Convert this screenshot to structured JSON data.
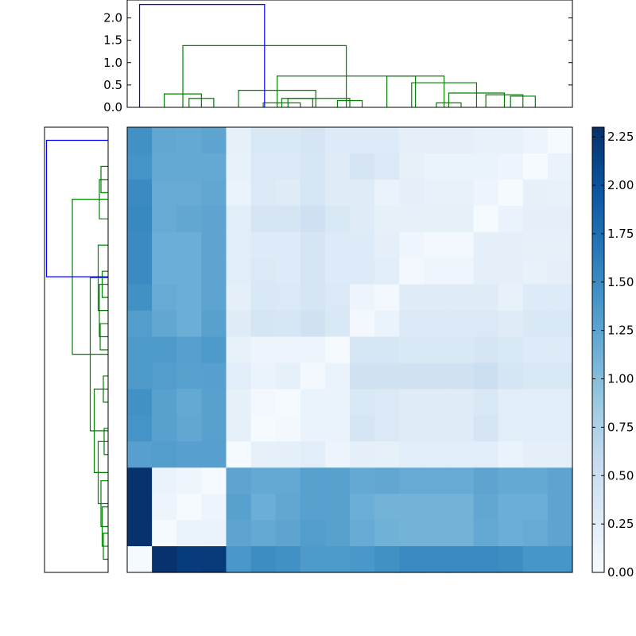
{
  "chart_data": {
    "type": "heatmap",
    "title": "",
    "xlabel": "",
    "ylabel": "",
    "grid": false,
    "colormap": "Blues",
    "colormap_stops": [
      "#f7fbff",
      "#deebf7",
      "#c6dbef",
      "#9ecae1",
      "#6baed6",
      "#4292c6",
      "#2171b5",
      "#08519c",
      "#08306b"
    ],
    "vmin": 0,
    "vmax": 2.3,
    "colorbar": {
      "placement": "right",
      "ticks": [
        0.0,
        0.25,
        0.5,
        0.75,
        1.0,
        1.25,
        1.5,
        1.75,
        2.0,
        2.25
      ],
      "tick_labels": [
        "0.00",
        "0.25",
        "0.50",
        "0.75",
        "1.00",
        "1.25",
        "1.50",
        "1.75",
        "2.00",
        "2.25"
      ]
    },
    "matrix_rows_top_to_bottom": [
      [
        1.45,
        1.22,
        1.2,
        1.25,
        0.2,
        0.35,
        0.35,
        0.4,
        0.3,
        0.3,
        0.3,
        0.22,
        0.22,
        0.22,
        0.18,
        0.18,
        0.12,
        0.02
      ],
      [
        1.42,
        1.2,
        1.2,
        1.2,
        0.18,
        0.32,
        0.32,
        0.38,
        0.28,
        0.4,
        0.32,
        0.2,
        0.15,
        0.15,
        0.15,
        0.12,
        0.02,
        0.15
      ],
      [
        1.5,
        1.18,
        1.18,
        1.22,
        0.15,
        0.32,
        0.28,
        0.38,
        0.28,
        0.28,
        0.15,
        0.22,
        0.18,
        0.18,
        0.12,
        0.02,
        0.2,
        0.18
      ],
      [
        1.52,
        1.18,
        1.22,
        1.25,
        0.25,
        0.4,
        0.4,
        0.48,
        0.35,
        0.28,
        0.2,
        0.2,
        0.2,
        0.2,
        0.02,
        0.15,
        0.22,
        0.22
      ],
      [
        1.5,
        1.15,
        1.15,
        1.25,
        0.25,
        0.3,
        0.3,
        0.4,
        0.3,
        0.3,
        0.22,
        0.1,
        0.05,
        0.05,
        0.22,
        0.22,
        0.2,
        0.2
      ],
      [
        1.5,
        1.15,
        1.15,
        1.25,
        0.25,
        0.32,
        0.3,
        0.4,
        0.3,
        0.3,
        0.25,
        0.05,
        0.1,
        0.1,
        0.22,
        0.22,
        0.18,
        0.22
      ],
      [
        1.45,
        1.18,
        1.15,
        1.25,
        0.22,
        0.35,
        0.32,
        0.4,
        0.32,
        0.12,
        0.05,
        0.28,
        0.28,
        0.28,
        0.28,
        0.18,
        0.3,
        0.3
      ],
      [
        1.32,
        1.22,
        1.15,
        1.28,
        0.28,
        0.4,
        0.38,
        0.45,
        0.35,
        0.05,
        0.15,
        0.32,
        0.32,
        0.32,
        0.32,
        0.28,
        0.35,
        0.35
      ],
      [
        1.35,
        1.35,
        1.3,
        1.35,
        0.18,
        0.12,
        0.12,
        0.12,
        0.02,
        0.38,
        0.38,
        0.35,
        0.35,
        0.35,
        0.4,
        0.35,
        0.3,
        0.3
      ],
      [
        1.35,
        1.32,
        1.28,
        1.3,
        0.25,
        0.15,
        0.2,
        0.05,
        0.15,
        0.45,
        0.45,
        0.45,
        0.45,
        0.45,
        0.5,
        0.4,
        0.35,
        0.35
      ],
      [
        1.45,
        1.28,
        1.2,
        1.28,
        0.2,
        0.05,
        0.02,
        0.15,
        0.15,
        0.35,
        0.32,
        0.28,
        0.28,
        0.28,
        0.35,
        0.25,
        0.25,
        0.25
      ],
      [
        1.42,
        1.28,
        1.22,
        1.28,
        0.2,
        0.02,
        0.05,
        0.15,
        0.15,
        0.4,
        0.32,
        0.28,
        0.28,
        0.28,
        0.4,
        0.25,
        0.25,
        0.25
      ],
      [
        1.3,
        1.32,
        1.3,
        1.3,
        0.02,
        0.2,
        0.22,
        0.25,
        0.12,
        0.22,
        0.2,
        0.25,
        0.25,
        0.25,
        0.25,
        0.15,
        0.22,
        0.22
      ],
      [
        2.28,
        0.15,
        0.1,
        0.02,
        1.25,
        1.2,
        1.2,
        1.28,
        1.28,
        1.2,
        1.22,
        1.18,
        1.18,
        1.18,
        1.25,
        1.2,
        1.2,
        1.25
      ],
      [
        2.28,
        0.12,
        0.02,
        0.12,
        1.28,
        1.15,
        1.22,
        1.28,
        1.28,
        1.15,
        1.1,
        1.1,
        1.1,
        1.1,
        1.22,
        1.15,
        1.15,
        1.25
      ],
      [
        2.28,
        0.02,
        0.15,
        0.15,
        1.25,
        1.2,
        1.25,
        1.32,
        1.28,
        1.18,
        1.12,
        1.1,
        1.1,
        1.1,
        1.2,
        1.15,
        1.18,
        1.25
      ],
      [
        0.02,
        2.28,
        2.2,
        2.22,
        1.38,
        1.48,
        1.45,
        1.35,
        1.35,
        1.38,
        1.45,
        1.5,
        1.5,
        1.5,
        1.5,
        1.48,
        1.4,
        1.4
      ]
    ],
    "dendrograms": [
      {
        "name": "top",
        "orientation": "top",
        "leaf_count": 18,
        "axis": {
          "range": [
            0,
            2.4
          ],
          "ticks": [
            0.0,
            0.5,
            1.0,
            1.5,
            2.0
          ],
          "tick_labels": [
            "0.0",
            "0.5",
            "1.0",
            "1.5",
            "2.0"
          ]
        },
        "links": [
          {
            "pos": [
              2.5,
              3.5
            ],
            "height": 0.2,
            "color": "#008000"
          },
          {
            "pos": [
              1.5,
              3.0
            ],
            "height": 0.3,
            "color": "#008000"
          },
          {
            "pos": [
              6.5,
              7.5
            ],
            "height": 0.2,
            "color": "#008000"
          },
          {
            "pos": [
              5.5,
              7.0
            ],
            "height": 0.1,
            "color": "#008000"
          },
          {
            "pos": [
              8.5,
              9.5
            ],
            "height": 0.15,
            "color": "#008000"
          },
          {
            "pos": [
              6.25,
              9.0
            ],
            "height": 0.2,
            "color": "#008000"
          },
          {
            "pos": [
              4.5,
              7.625
            ],
            "height": 0.38,
            "color": "#008000"
          },
          {
            "pos": [
              12.5,
              13.5
            ],
            "height": 0.1,
            "color": "#008000"
          },
          {
            "pos": [
              15.5,
              16.5
            ],
            "height": 0.25,
            "color": "#008000"
          },
          {
            "pos": [
              14.5,
              16.0
            ],
            "height": 0.28,
            "color": "#008000"
          },
          {
            "pos": [
              13.0,
              15.25
            ],
            "height": 0.32,
            "color": "#008000"
          },
          {
            "pos": [
              11.5,
              14.125
            ],
            "height": 0.55,
            "color": "#008000"
          },
          {
            "pos": [
              10.5,
              12.8125
            ],
            "height": 0.7,
            "color": "#008000"
          },
          {
            "pos": [
              6.0625,
              11.65625
            ],
            "height": 0.7,
            "color": "#008000"
          },
          {
            "pos": [
              2.25,
              8.859375
            ],
            "height": 1.38,
            "color": "#008000"
          },
          {
            "pos": [
              0.5,
              5.5546875
            ],
            "height": 2.3,
            "color": "#0000ff"
          }
        ]
      },
      {
        "name": "left",
        "orientation": "left",
        "leaf_count": 17,
        "links": [
          {
            "pos": [
              0.5,
              1.5
            ],
            "height": 0.12,
            "color": "#008000"
          },
          {
            "pos": [
              1.0,
              2.5
            ],
            "height": 0.15,
            "color": "#008000"
          },
          {
            "pos": [
              1.75,
              3.5
            ],
            "height": 0.18,
            "color": "#008000"
          },
          {
            "pos": [
              4.5,
              5.5
            ],
            "height": 0.1,
            "color": "#008000"
          },
          {
            "pos": [
              2.625,
              5.0
            ],
            "height": 0.25,
            "color": "#008000"
          },
          {
            "pos": [
              6.5,
              7.5
            ],
            "height": 0.12,
            "color": "#008000"
          },
          {
            "pos": [
              3.8125,
              7.0
            ],
            "height": 0.35,
            "color": "#008000"
          },
          {
            "pos": [
              8.5,
              9.5
            ],
            "height": 0.2,
            "color": "#008000"
          },
          {
            "pos": [
              10.5,
              11.5
            ],
            "height": 0.15,
            "color": "#008000"
          },
          {
            "pos": [
              9.0,
              11.0
            ],
            "height": 0.22,
            "color": "#008000"
          },
          {
            "pos": [
              10.0,
              12.5
            ],
            "height": 0.25,
            "color": "#008000"
          },
          {
            "pos": [
              5.40625,
              11.25
            ],
            "height": 0.45,
            "color": "#008000"
          },
          {
            "pos": [
              14.5,
              15.5
            ],
            "height": 0.18,
            "color": "#008000"
          },
          {
            "pos": [
              13.5,
              15.0
            ],
            "height": 0.22,
            "color": "#008000"
          },
          {
            "pos": [
              8.328125,
              14.25
            ],
            "height": 0.9,
            "color": "#008000"
          },
          {
            "pos": [
              11.2890625,
              16.5
            ],
            "height": 1.55,
            "color": "#0000ff"
          }
        ]
      }
    ]
  }
}
